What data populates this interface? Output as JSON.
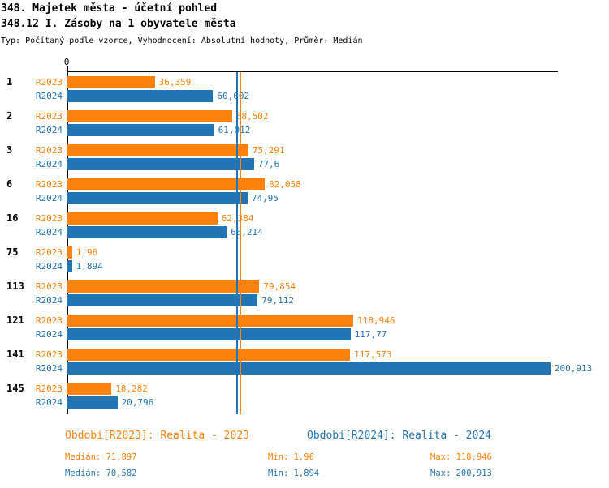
{
  "header": {
    "title_line1": "348. Majetek města - účetní pohled",
    "title_line2": "348.12 I. Zásoby na 1 obyvatele města",
    "subtitle": "Typ: Počítaný podle vzorce, Vyhodnocení: Absolutní hodnoty, Průměr: Medián"
  },
  "colors": {
    "r2023_orange": "#fd820d",
    "r2024_blue": "#2275b4",
    "axis_black": "#000000",
    "background": "#ffffff"
  },
  "chart_data": {
    "type": "bar",
    "orientation": "horizontal",
    "title": "348.12 I. Zásoby na 1 obyvatele města",
    "x_axis": {
      "zero_tick_label": "0",
      "xlim": [
        0,
        204
      ],
      "grid": false
    },
    "categories": [
      "1",
      "2",
      "3",
      "6",
      "16",
      "75",
      "113",
      "121",
      "141",
      "145"
    ],
    "series": [
      {
        "name": "R2023",
        "color": "#fd820d",
        "values": [
          36.359,
          68.502,
          75.291,
          82.058,
          62.384,
          1.96,
          79.854,
          118.946,
          117.573,
          18.282
        ],
        "value_labels": [
          "36,359",
          "68,502",
          "75,291",
          "82,058",
          "62,384",
          "1,96",
          "79,854",
          "118,946",
          "117,573",
          "18,282"
        ],
        "median": 71.897,
        "min": 1.96,
        "max": 118.946
      },
      {
        "name": "R2024",
        "color": "#2275b4",
        "values": [
          60.602,
          61.012,
          77.6,
          74.95,
          66.214,
          1.894,
          79.112,
          117.77,
          200.913,
          20.796
        ],
        "value_labels": [
          "60,602",
          "61,012",
          "77,6",
          "74,95",
          "66,214",
          "1,894",
          "79,112",
          "117,77",
          "200,913",
          "20,796"
        ],
        "median": 70.582,
        "min": 1.894,
        "max": 200.913
      }
    ],
    "median_lines": true,
    "legend_position": "none"
  },
  "footer": {
    "period_r2023": "Období[R2023]: Realita - 2023",
    "period_r2024": "Období[R2024]: Realita - 2024",
    "stats_r2023": {
      "median": "Medián: 71,897",
      "min": "Min: 1,96",
      "max": "Max: 118,946"
    },
    "stats_r2024": {
      "median": "Medián: 70,582",
      "min": "Min: 1,894",
      "max": "Max: 200,913"
    }
  }
}
